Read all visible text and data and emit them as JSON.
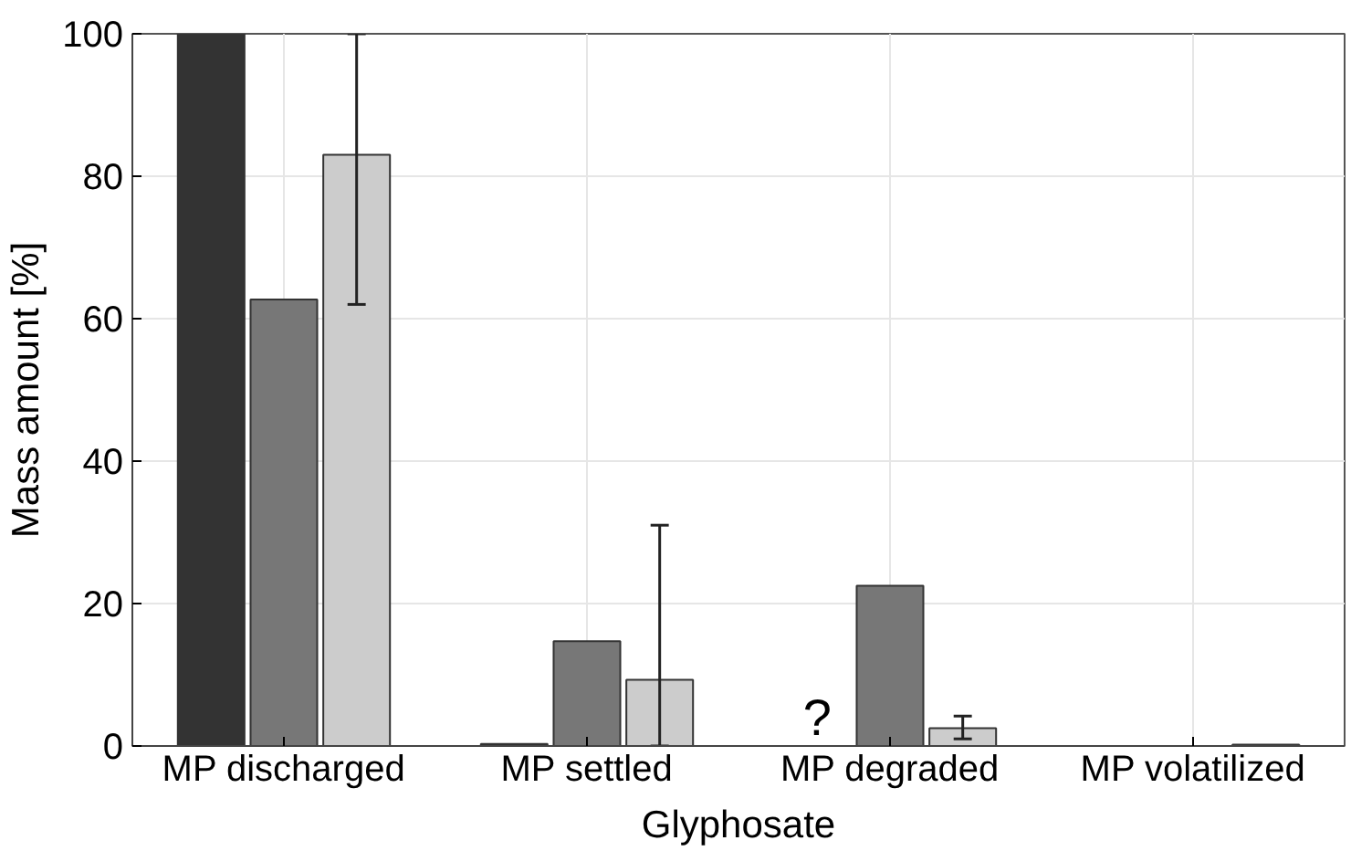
{
  "chart_data": {
    "type": "bar",
    "xlabel": "Glyphosate",
    "ylabel": "Mass amount [%]",
    "categories": [
      "MP discharged",
      "MP settled",
      "MP degraded",
      "MP volatilized"
    ],
    "series": [
      {
        "color": "#333333",
        "values": [
          100,
          0.3,
          null,
          null
        ]
      },
      {
        "color": "#777777",
        "values": [
          62.7,
          14.7,
          22.5,
          null
        ]
      },
      {
        "color": "#cccccc",
        "values": [
          83,
          9.3,
          2.5,
          0.2
        ],
        "errors": [
          [
            62,
            100
          ],
          [
            0,
            31
          ],
          [
            1,
            4.2
          ],
          null
        ]
      }
    ],
    "ylim": [
      0,
      100
    ],
    "yticks": [
      0,
      20,
      40,
      60,
      80,
      100
    ],
    "grid": true,
    "annotations": [
      {
        "text": "?",
        "x": "MP degraded",
        "y": 0
      }
    ]
  }
}
